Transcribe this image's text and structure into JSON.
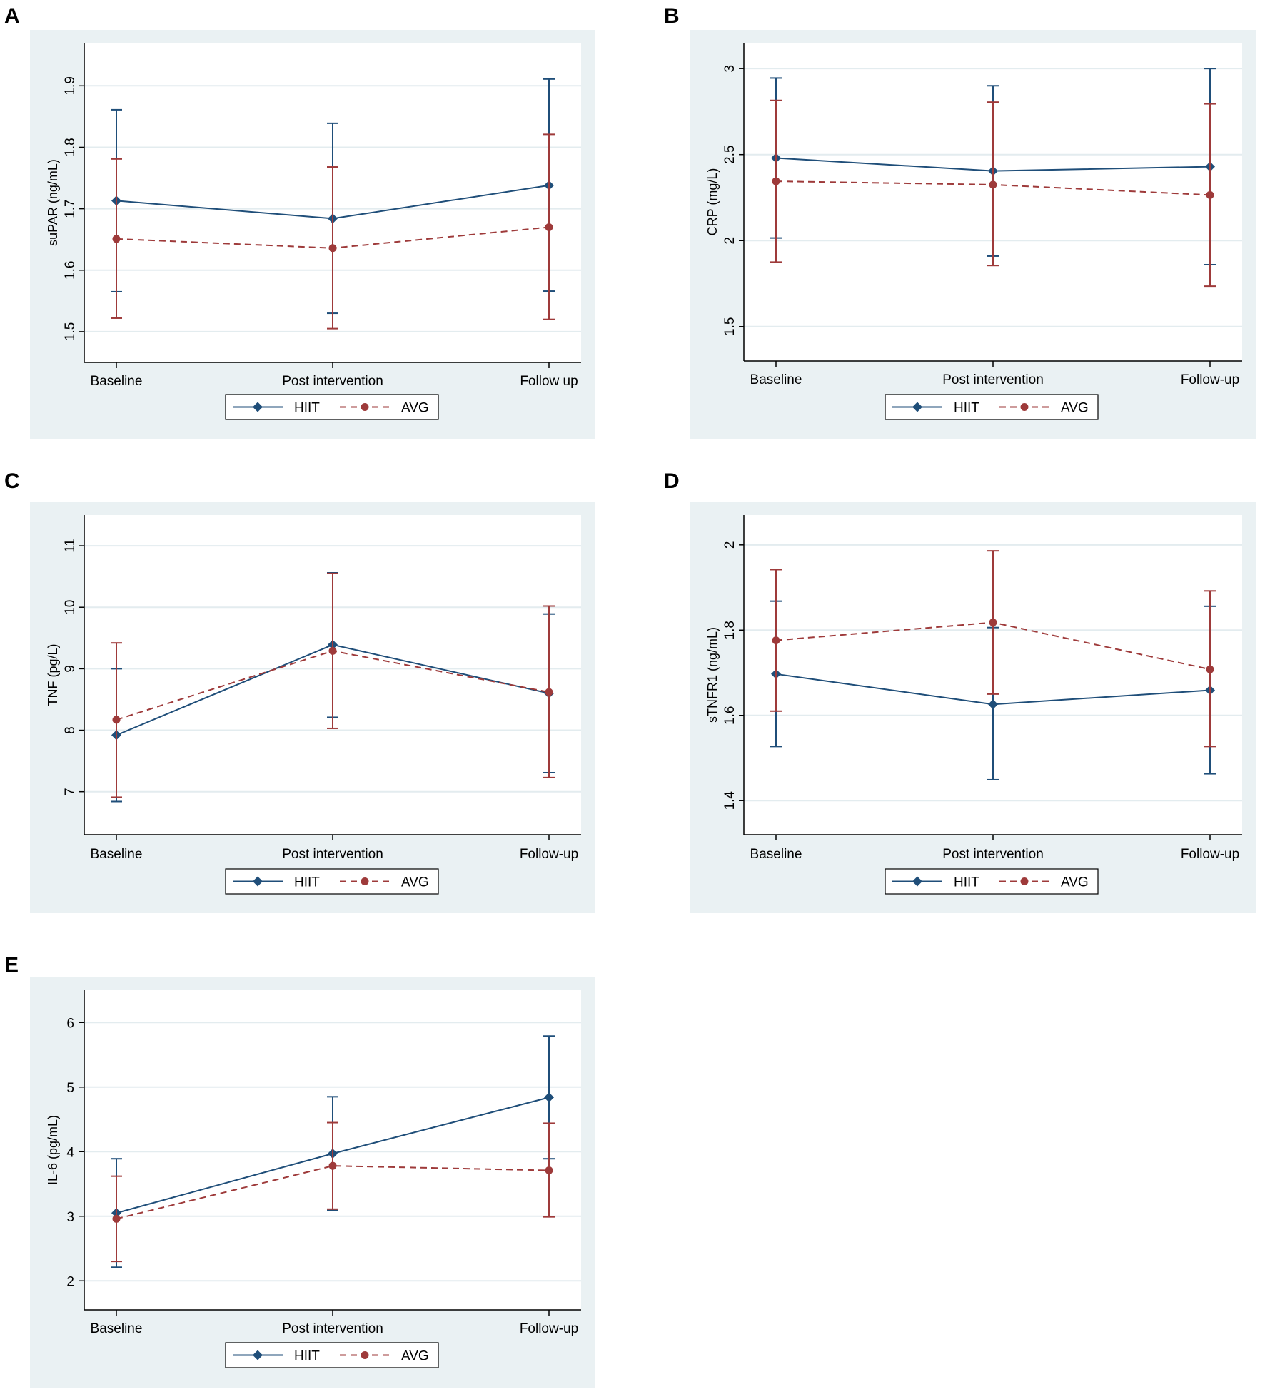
{
  "figure": {
    "panels": [
      {
        "letter": "A",
        "legend": {
          "hiit": "HIIT",
          "avg": "AVG"
        }
      },
      {
        "letter": "B",
        "legend": {
          "hiit": "HIIT",
          "avg": "AVG"
        }
      },
      {
        "letter": "C",
        "legend": {
          "hiit": "HIIT",
          "avg": "AVG"
        }
      },
      {
        "letter": "D",
        "legend": {
          "hiit": "HIIT",
          "avg": "AVG"
        }
      },
      {
        "letter": "E",
        "legend": {
          "hiit": "HIIT",
          "avg": "AVG"
        }
      }
    ]
  },
  "colors": {
    "hiit": "#1f4e79",
    "avg": "#9e3a3a",
    "panel_bg": "#eaf1f3",
    "plot_bg": "#ffffff",
    "grid": "#e3ecef"
  },
  "chart_data": [
    {
      "type": "line",
      "panel": "A",
      "title": "",
      "xlabel": "",
      "ylabel": "suPAR (ng/mL)",
      "categories": [
        "Baseline",
        "Post intervention",
        "Follow up"
      ],
      "ylim": [
        1.45,
        1.97
      ],
      "yticks": [
        1.5,
        1.6,
        1.7,
        1.8,
        1.9
      ],
      "ytick_labels": [
        "1.5",
        "1.6",
        "1.7",
        "1.8",
        "1.9"
      ],
      "ytick_rotated": true,
      "series": [
        {
          "name": "HIIT",
          "values": [
            1.713,
            1.684,
            1.738
          ],
          "lower": [
            1.565,
            1.53,
            1.566
          ],
          "upper": [
            1.861,
            1.839,
            1.911
          ]
        },
        {
          "name": "AVG",
          "values": [
            1.651,
            1.636,
            1.67
          ],
          "lower": [
            1.522,
            1.505,
            1.52
          ],
          "upper": [
            1.781,
            1.768,
            1.821
          ]
        }
      ]
    },
    {
      "type": "line",
      "panel": "B",
      "title": "",
      "xlabel": "",
      "ylabel": "CRP (mg/L)",
      "categories": [
        "Baseline",
        "Post intervention",
        "Follow-up"
      ],
      "ylim": [
        1.3,
        3.15
      ],
      "yticks": [
        1.5,
        2,
        2.5,
        3
      ],
      "ytick_labels": [
        "1.5",
        "2",
        "2.5",
        "3"
      ],
      "ytick_rotated": true,
      "series": [
        {
          "name": "HIIT",
          "values": [
            2.48,
            2.405,
            2.43
          ],
          "lower": [
            2.015,
            1.91,
            1.86
          ],
          "upper": [
            2.945,
            2.9,
            3.0
          ]
        },
        {
          "name": "AVG",
          "values": [
            2.345,
            2.325,
            2.265
          ],
          "lower": [
            1.875,
            1.855,
            1.735
          ],
          "upper": [
            2.815,
            2.805,
            2.795
          ]
        }
      ]
    },
    {
      "type": "line",
      "panel": "C",
      "title": "",
      "xlabel": "",
      "ylabel": "TNF (pg/L)",
      "categories": [
        "Baseline",
        "Post intervention",
        "Follow-up"
      ],
      "ylim": [
        6.3,
        11.5
      ],
      "yticks": [
        7,
        8,
        9,
        10,
        11
      ],
      "ytick_labels": [
        "7",
        "8",
        "9",
        "10",
        "11"
      ],
      "ytick_rotated": true,
      "series": [
        {
          "name": "HIIT",
          "values": [
            7.92,
            9.39,
            8.6
          ],
          "lower": [
            6.84,
            8.21,
            7.31
          ],
          "upper": [
            9.0,
            10.56,
            9.89
          ]
        },
        {
          "name": "AVG",
          "values": [
            8.17,
            9.29,
            8.62
          ],
          "lower": [
            6.91,
            8.03,
            7.23
          ],
          "upper": [
            9.42,
            10.55,
            10.02
          ]
        }
      ]
    },
    {
      "type": "line",
      "panel": "D",
      "title": "",
      "xlabel": "",
      "ylabel": "sTNFR1 (ng/mL)",
      "categories": [
        "Baseline",
        "Post intervention",
        "Follow-up"
      ],
      "ylim": [
        1.32,
        2.07
      ],
      "yticks": [
        1.4,
        1.6,
        1.8,
        2.0
      ],
      "ytick_labels": [
        "1.4",
        "1.6",
        "1.8",
        "2"
      ],
      "ytick_rotated": true,
      "series": [
        {
          "name": "HIIT",
          "values": [
            1.697,
            1.626,
            1.659
          ],
          "lower": [
            1.527,
            1.449,
            1.463
          ],
          "upper": [
            1.868,
            1.806,
            1.856
          ]
        },
        {
          "name": "AVG",
          "values": [
            1.776,
            1.818,
            1.708
          ],
          "lower": [
            1.61,
            1.65,
            1.527
          ],
          "upper": [
            1.942,
            1.986,
            1.892
          ]
        }
      ]
    },
    {
      "type": "line",
      "panel": "E",
      "title": "",
      "xlabel": "",
      "ylabel": "IL-6 (pg/mL)",
      "categories": [
        "Baseline",
        "Post intervention",
        "Follow-up"
      ],
      "ylim": [
        1.55,
        6.5
      ],
      "yticks": [
        2,
        3,
        4,
        5,
        6
      ],
      "ytick_labels": [
        "2",
        "3",
        "4",
        "5",
        "6"
      ],
      "ytick_rotated": false,
      "series": [
        {
          "name": "HIIT",
          "values": [
            3.05,
            3.97,
            4.84
          ],
          "lower": [
            2.21,
            3.09,
            3.89
          ],
          "upper": [
            3.89,
            4.85,
            5.79
          ]
        },
        {
          "name": "AVG",
          "values": [
            2.96,
            3.78,
            3.71
          ],
          "lower": [
            2.3,
            3.11,
            2.99
          ],
          "upper": [
            3.62,
            4.45,
            4.44
          ]
        }
      ]
    }
  ]
}
